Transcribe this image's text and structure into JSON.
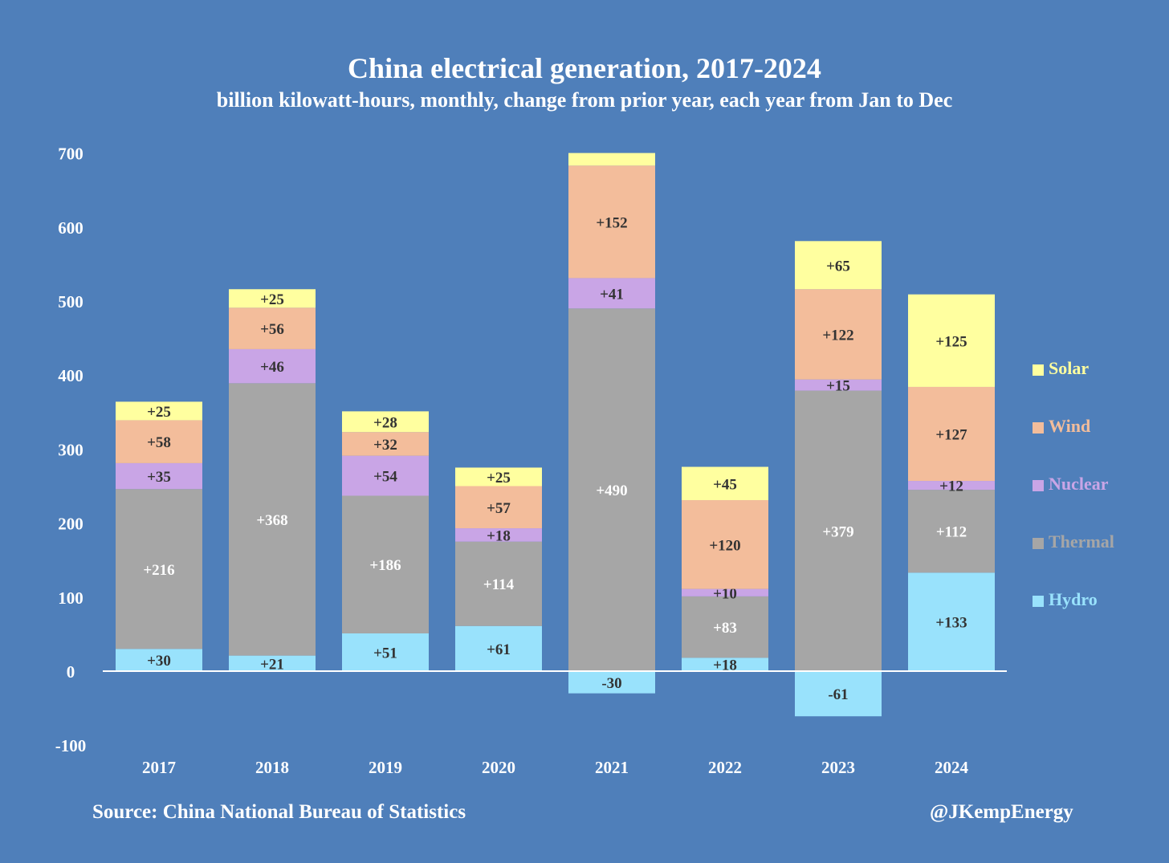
{
  "chart_data": {
    "type": "bar",
    "stacked": true,
    "title": "China electrical generation, 2017-2024",
    "subtitle": "billion kilowatt-hours, monthly, change from prior year, each year from Jan to Dec",
    "xlabel": "",
    "ylabel": "",
    "ylim": [
      -100,
      700
    ],
    "yticks": [
      -100,
      0,
      100,
      200,
      300,
      400,
      500,
      600,
      700
    ],
    "categories": [
      "2017",
      "2018",
      "2019",
      "2020",
      "2021",
      "2022",
      "2023",
      "2024"
    ],
    "series": [
      {
        "name": "Hydro",
        "color": "#99e2fc",
        "values": [
          30,
          21,
          51,
          61,
          -30,
          18,
          -61,
          133
        ],
        "labels": [
          "+30",
          "+21",
          "+51",
          "+61",
          "-30",
          "+18",
          "-61",
          "+133"
        ]
      },
      {
        "name": "Thermal",
        "color": "#a6a6a6",
        "values": [
          216,
          368,
          186,
          114,
          490,
          83,
          379,
          112
        ],
        "labels": [
          "+216",
          "+368",
          "+186",
          "+114",
          "+490",
          "+83",
          "+379",
          "+112"
        ]
      },
      {
        "name": "Nuclear",
        "color": "#c9a5e6",
        "values": [
          35,
          46,
          54,
          18,
          41,
          10,
          15,
          12
        ],
        "labels": [
          "+35",
          "+46",
          "+54",
          "+18",
          "+41",
          "+10",
          "+15",
          "+12"
        ]
      },
      {
        "name": "Wind",
        "color": "#f3bd9b",
        "values": [
          58,
          56,
          32,
          57,
          152,
          120,
          122,
          127
        ],
        "labels": [
          "+58",
          "+56",
          "+32",
          "+57",
          "+152",
          "+120",
          "+122",
          "+127"
        ]
      },
      {
        "name": "Solar",
        "color": "#ffff9f",
        "values": [
          25,
          25,
          28,
          25,
          17,
          45,
          65,
          125
        ],
        "labels": [
          "+25",
          "+25",
          "+28",
          "+25",
          "",
          "+45",
          "+65",
          "+125"
        ]
      }
    ],
    "legend": {
      "position": "right",
      "items": [
        {
          "name": "Solar",
          "color": "#ffff9f"
        },
        {
          "name": "Wind",
          "color": "#f3bd9b"
        },
        {
          "name": "Nuclear",
          "color": "#c9a5e6"
        },
        {
          "name": "Thermal",
          "color": "#a6a6a6"
        },
        {
          "name": "Hydro",
          "color": "#99e2fc"
        }
      ]
    },
    "source": "Source: China National Bureau of Statistics",
    "credit": "@JKempEnergy"
  }
}
